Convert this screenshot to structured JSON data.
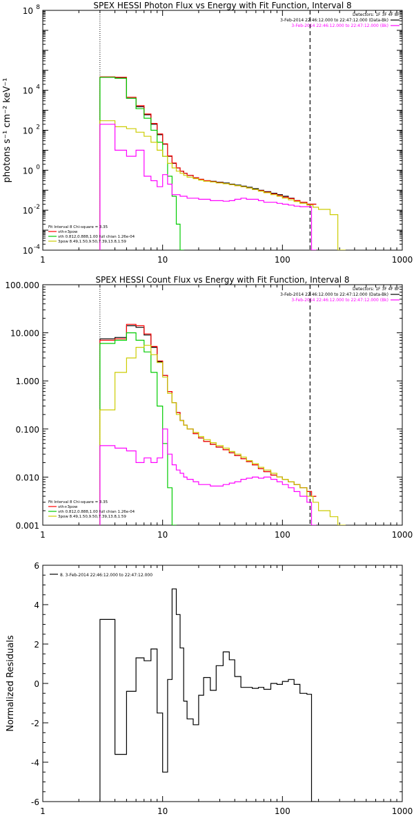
{
  "chart_data": [
    {
      "type": "line",
      "title": "SPEX HESSI Photon Flux vs Energy with Fit Function, Interval 8",
      "xlabel": "",
      "ylabel": "photons s⁻¹ cm⁻² keV⁻¹",
      "xscale": "log",
      "yscale": "log",
      "xlim": [
        1,
        1000
      ],
      "ylim": [
        0.0001,
        100000000
      ],
      "x_ticks": [
        1,
        10,
        100,
        1000
      ],
      "x_tick_labels": [
        "1",
        "10",
        "100",
        "1000"
      ],
      "y_ticks": [
        0.0001,
        0.01,
        1,
        100,
        10000,
        100000000
      ],
      "y_tick_labels": [
        {
          "base": "10",
          "exp": "-4"
        },
        {
          "base": "10",
          "exp": "-2"
        },
        {
          "base": "10",
          "exp": "0"
        },
        {
          "base": "10",
          "exp": "2"
        },
        {
          "base": "10",
          "exp": "4"
        },
        {
          "base": "10",
          "exp": "8"
        }
      ],
      "vlines": [
        {
          "x": 3.0,
          "style": "dotted"
        },
        {
          "x": 170,
          "style": "dashed"
        }
      ],
      "legend_top": [
        {
          "text": "Detectors: 1F 3F 4F 8F",
          "color": "#000000"
        },
        {
          "text": "3-Feb-2014 22:46:12.000 to 22:47:12.000 (Data-Bk)",
          "color": "#000000"
        },
        {
          "text": "3-Feb-2014 22:46:12.000 to 22:47:12.000 (Bk)",
          "color": "#ff00ff"
        }
      ],
      "legend_bottom": [
        {
          "text": "Fit Interval 8   Chi-square = 3.35",
          "color": "#000000"
        },
        {
          "text": "vth+3pow",
          "color": "#ff0000"
        },
        {
          "text": "vth 0.812,0.888,1.00  full chian 1.26e-04",
          "color": "#00cc00"
        },
        {
          "text": "3pow 8.49,1.50,9.50,7.39,13.8,1.59",
          "color": "#cccc00"
        }
      ],
      "series": [
        {
          "name": "Data-Bk",
          "color": "#000000",
          "x": [
            3,
            4,
            5,
            6,
            7,
            8,
            9,
            10,
            11,
            12,
            13,
            14,
            15,
            16,
            18,
            20,
            22,
            25,
            28,
            32,
            36,
            40,
            45,
            50,
            56,
            63,
            70,
            80,
            90,
            100,
            112,
            125,
            140,
            160,
            175
          ],
          "y": [
            45000,
            42000,
            4000,
            1500,
            600,
            200,
            60,
            20,
            5,
            2.2,
            1.3,
            0.9,
            0.7,
            0.55,
            0.42,
            0.35,
            0.3,
            0.28,
            0.25,
            0.23,
            0.2,
            0.18,
            0.16,
            0.14,
            0.12,
            0.1,
            0.085,
            0.07,
            0.06,
            0.05,
            0.04,
            0.03,
            0.025,
            0.02,
            0.02
          ]
        },
        {
          "name": "vth+3pow",
          "color": "#ff0000",
          "x": [
            3,
            4,
            5,
            6,
            7,
            8,
            9,
            10,
            11,
            12,
            13,
            14,
            15,
            16,
            18,
            20,
            22,
            25,
            28,
            32,
            36,
            40,
            45,
            50,
            56,
            63,
            70,
            80,
            90,
            100,
            112,
            125,
            140,
            160,
            175
          ],
          "y": [
            47000,
            45000,
            4500,
            1700,
            650,
            220,
            65,
            21,
            5.2,
            2.3,
            1.3,
            0.9,
            0.7,
            0.55,
            0.42,
            0.35,
            0.3,
            0.27,
            0.24,
            0.21,
            0.19,
            0.17,
            0.15,
            0.13,
            0.11,
            0.095,
            0.08,
            0.065,
            0.055,
            0.045,
            0.038,
            0.03,
            0.025,
            0.02,
            0.02
          ]
        },
        {
          "name": "vth",
          "color": "#00cc00",
          "x": [
            3,
            4,
            5,
            6,
            7,
            8,
            9,
            10,
            11,
            12,
            13,
            14
          ],
          "y": [
            45000,
            40000,
            4000,
            1200,
            400,
            100,
            25,
            5,
            0.5,
            0.05,
            0.002,
            0.0001
          ]
        },
        {
          "name": "3pow",
          "color": "#cccc00",
          "x": [
            3,
            4,
            5,
            6,
            7,
            8,
            9,
            10,
            11,
            12,
            13,
            14,
            15,
            16,
            18,
            20,
            22,
            25,
            28,
            32,
            36,
            40,
            45,
            50,
            56,
            63,
            70,
            80,
            90,
            100,
            112,
            125,
            140,
            160,
            180,
            200,
            250,
            290
          ],
          "y": [
            300,
            150,
            120,
            80,
            50,
            25,
            10,
            5,
            2.2,
            1.3,
            0.9,
            0.7,
            0.55,
            0.45,
            0.38,
            0.32,
            0.28,
            0.26,
            0.23,
            0.21,
            0.19,
            0.17,
            0.15,
            0.13,
            0.11,
            0.09,
            0.075,
            0.06,
            0.05,
            0.04,
            0.033,
            0.027,
            0.022,
            0.018,
            0.014,
            0.011,
            0.006,
            0.0001
          ]
        },
        {
          "name": "Bk",
          "color": "#ff00ff",
          "x": [
            3,
            4,
            5,
            6,
            7,
            8,
            9,
            10,
            11,
            12,
            13,
            14,
            15,
            16,
            18,
            20,
            22,
            25,
            28,
            32,
            36,
            40,
            45,
            50,
            56,
            63,
            70,
            80,
            90,
            100,
            112,
            125,
            140,
            160,
            175
          ],
          "y": [
            200,
            10,
            5,
            10,
            0.5,
            0.3,
            0.15,
            0.6,
            0.2,
            0.06,
            0.06,
            0.05,
            0.05,
            0.04,
            0.04,
            0.035,
            0.035,
            0.03,
            0.03,
            0.028,
            0.03,
            0.035,
            0.04,
            0.035,
            0.035,
            0.03,
            0.025,
            0.025,
            0.022,
            0.02,
            0.018,
            0.016,
            0.015,
            0.015,
            0.0001
          ]
        }
      ]
    },
    {
      "type": "line",
      "title": "SPEX HESSI Count Flux vs Energy with Fit Function, Interval 8",
      "xlabel": "",
      "ylabel": "",
      "xscale": "log",
      "yscale": "log",
      "xlim": [
        1,
        1000
      ],
      "ylim": [
        0.001,
        100
      ],
      "x_ticks": [
        1,
        10,
        100,
        1000
      ],
      "x_tick_labels": [
        "1",
        "10",
        "100",
        "1000"
      ],
      "y_ticks": [
        0.001,
        0.01,
        0.1,
        1,
        10,
        100
      ],
      "y_tick_labels": [
        "0.001",
        "0.010",
        "0.100",
        "1.000",
        "10.000",
        "100.000"
      ],
      "vlines": [
        {
          "x": 3.0,
          "style": "dotted"
        },
        {
          "x": 170,
          "style": "dashed"
        }
      ],
      "legend_top": [
        {
          "text": "Detectors: 1F 3F 4F 8F",
          "color": "#000000"
        },
        {
          "text": "3-Feb-2014 22:46:12.000 to 22:47:12.000 (Data-Bk)",
          "color": "#000000"
        },
        {
          "text": "3-Feb-2014 22:46:12.000 to 22:47:12.000 (Bk)",
          "color": "#ff00ff"
        }
      ],
      "legend_bottom": [
        {
          "text": "Fit Interval 8   Chi-square = 3.35",
          "color": "#000000"
        },
        {
          "text": "vth+3pow",
          "color": "#ff0000"
        },
        {
          "text": "vth 0.812,0.888,1.00  full chian 1.26e-04",
          "color": "#00cc00"
        },
        {
          "text": "3pow 8.49,1.50,9.50,7.39,13.8,1.59",
          "color": "#cccc00"
        }
      ],
      "series": [
        {
          "name": "Data-Bk",
          "color": "#000000",
          "x": [
            3,
            4,
            5,
            6,
            7,
            8,
            9,
            10,
            11,
            12,
            13,
            14,
            15,
            16,
            18,
            20,
            22,
            25,
            28,
            32,
            36,
            40,
            45,
            50,
            56,
            63,
            70,
            80,
            90,
            100,
            112,
            125,
            140,
            160,
            175
          ],
          "y": [
            7.5,
            8,
            14,
            13,
            9,
            5,
            2.5,
            1.3,
            0.6,
            0.35,
            0.22,
            0.15,
            0.12,
            0.1,
            0.08,
            0.065,
            0.055,
            0.048,
            0.042,
            0.037,
            0.032,
            0.028,
            0.024,
            0.021,
            0.018,
            0.015,
            0.013,
            0.011,
            0.01,
            0.009,
            0.008,
            0.007,
            0.006,
            0.005,
            0.004
          ]
        },
        {
          "name": "vth+3pow",
          "color": "#ff0000",
          "x": [
            3,
            4,
            5,
            6,
            7,
            8,
            9,
            10,
            11,
            12,
            13,
            14,
            15,
            16,
            18,
            20,
            22,
            25,
            28,
            32,
            36,
            40,
            45,
            50,
            56,
            63,
            70,
            80,
            90,
            100,
            112,
            125,
            140,
            160,
            175
          ],
          "y": [
            7,
            7.5,
            15,
            14,
            9.5,
            5.2,
            2.6,
            1.3,
            0.6,
            0.35,
            0.22,
            0.15,
            0.12,
            0.1,
            0.08,
            0.065,
            0.055,
            0.048,
            0.042,
            0.037,
            0.032,
            0.028,
            0.024,
            0.021,
            0.018,
            0.015,
            0.013,
            0.011,
            0.01,
            0.009,
            0.008,
            0.007,
            0.006,
            0.005,
            0.004
          ]
        },
        {
          "name": "vth",
          "color": "#00cc00",
          "x": [
            3,
            4,
            5,
            6,
            7,
            8,
            9,
            10,
            11,
            12
          ],
          "y": [
            6,
            7,
            10,
            7,
            4,
            1.5,
            0.3,
            0.05,
            0.006,
            0.001
          ]
        },
        {
          "name": "3pow",
          "color": "#cccc00",
          "x": [
            3,
            4,
            5,
            6,
            7,
            8,
            9,
            10,
            11,
            12,
            13,
            14,
            15,
            16,
            18,
            20,
            22,
            25,
            28,
            32,
            36,
            40,
            45,
            50,
            56,
            63,
            70,
            80,
            90,
            100,
            112,
            125,
            140,
            160,
            180,
            200,
            250,
            290
          ],
          "y": [
            0.25,
            1.5,
            3,
            5,
            5.5,
            3.5,
            2.4,
            1.2,
            0.55,
            0.35,
            0.2,
            0.15,
            0.12,
            0.1,
            0.085,
            0.07,
            0.06,
            0.052,
            0.045,
            0.04,
            0.034,
            0.03,
            0.026,
            0.022,
            0.019,
            0.016,
            0.014,
            0.012,
            0.01,
            0.009,
            0.008,
            0.007,
            0.006,
            0.004,
            0.003,
            0.002,
            0.0015,
            0.001
          ]
        },
        {
          "name": "Bk",
          "color": "#ff00ff",
          "x": [
            3,
            4,
            5,
            6,
            7,
            8,
            9,
            10,
            11,
            12,
            13,
            14,
            15,
            16,
            18,
            20,
            22,
            25,
            28,
            32,
            36,
            40,
            45,
            50,
            56,
            63,
            70,
            80,
            90,
            100,
            112,
            125,
            140,
            160,
            175
          ],
          "y": [
            0.045,
            0.04,
            0.035,
            0.02,
            0.025,
            0.02,
            0.025,
            0.1,
            0.03,
            0.018,
            0.014,
            0.012,
            0.01,
            0.009,
            0.008,
            0.007,
            0.007,
            0.0065,
            0.0065,
            0.007,
            0.0075,
            0.008,
            0.009,
            0.0095,
            0.01,
            0.0095,
            0.01,
            0.009,
            0.008,
            0.007,
            0.006,
            0.005,
            0.004,
            0.003,
            0.001
          ]
        }
      ]
    },
    {
      "type": "line",
      "title": "",
      "xlabel": "",
      "ylabel": "Normalized Residuals",
      "xscale": "log",
      "yscale": "linear",
      "xlim": [
        1,
        1000
      ],
      "ylim": [
        -6,
        6
      ],
      "x_ticks": [
        1,
        10,
        100,
        1000
      ],
      "x_tick_labels": [
        "1",
        "10",
        "100",
        "1000"
      ],
      "y_ticks": [
        -6,
        -4,
        -2,
        0,
        2,
        4,
        6
      ],
      "y_tick_labels": [
        "-6",
        "-4",
        "-2",
        "0",
        "2",
        "4",
        "6"
      ],
      "legend_top": [
        {
          "text": "8.  3-Feb-2014 22:46:12.000 to 22:47:12.000",
          "color": "#000000"
        }
      ],
      "series": [
        {
          "name": "8.  3-Feb-2014 22:46:12.000 to 22:47:12.000",
          "color": "#000000",
          "x": [
            3,
            4,
            5,
            6,
            7,
            8,
            9,
            10,
            11,
            12,
            13,
            14,
            15,
            16,
            18,
            20,
            22,
            25,
            28,
            32,
            36,
            40,
            45,
            50,
            56,
            63,
            70,
            80,
            90,
            100,
            112,
            125,
            140,
            160,
            175
          ],
          "y": [
            3.25,
            -3.6,
            -0.4,
            1.3,
            1.15,
            1.75,
            -1.5,
            -4.5,
            0.2,
            4.8,
            3.5,
            1.8,
            -0.9,
            -1.8,
            -2.1,
            -0.6,
            0.3,
            -0.35,
            0.9,
            1.6,
            1.2,
            0.35,
            -0.2,
            -0.2,
            -0.25,
            -0.2,
            -0.3,
            0.0,
            -0.05,
            0.1,
            0.2,
            -0.05,
            -0.5,
            -0.55,
            -6.0
          ]
        }
      ]
    }
  ]
}
